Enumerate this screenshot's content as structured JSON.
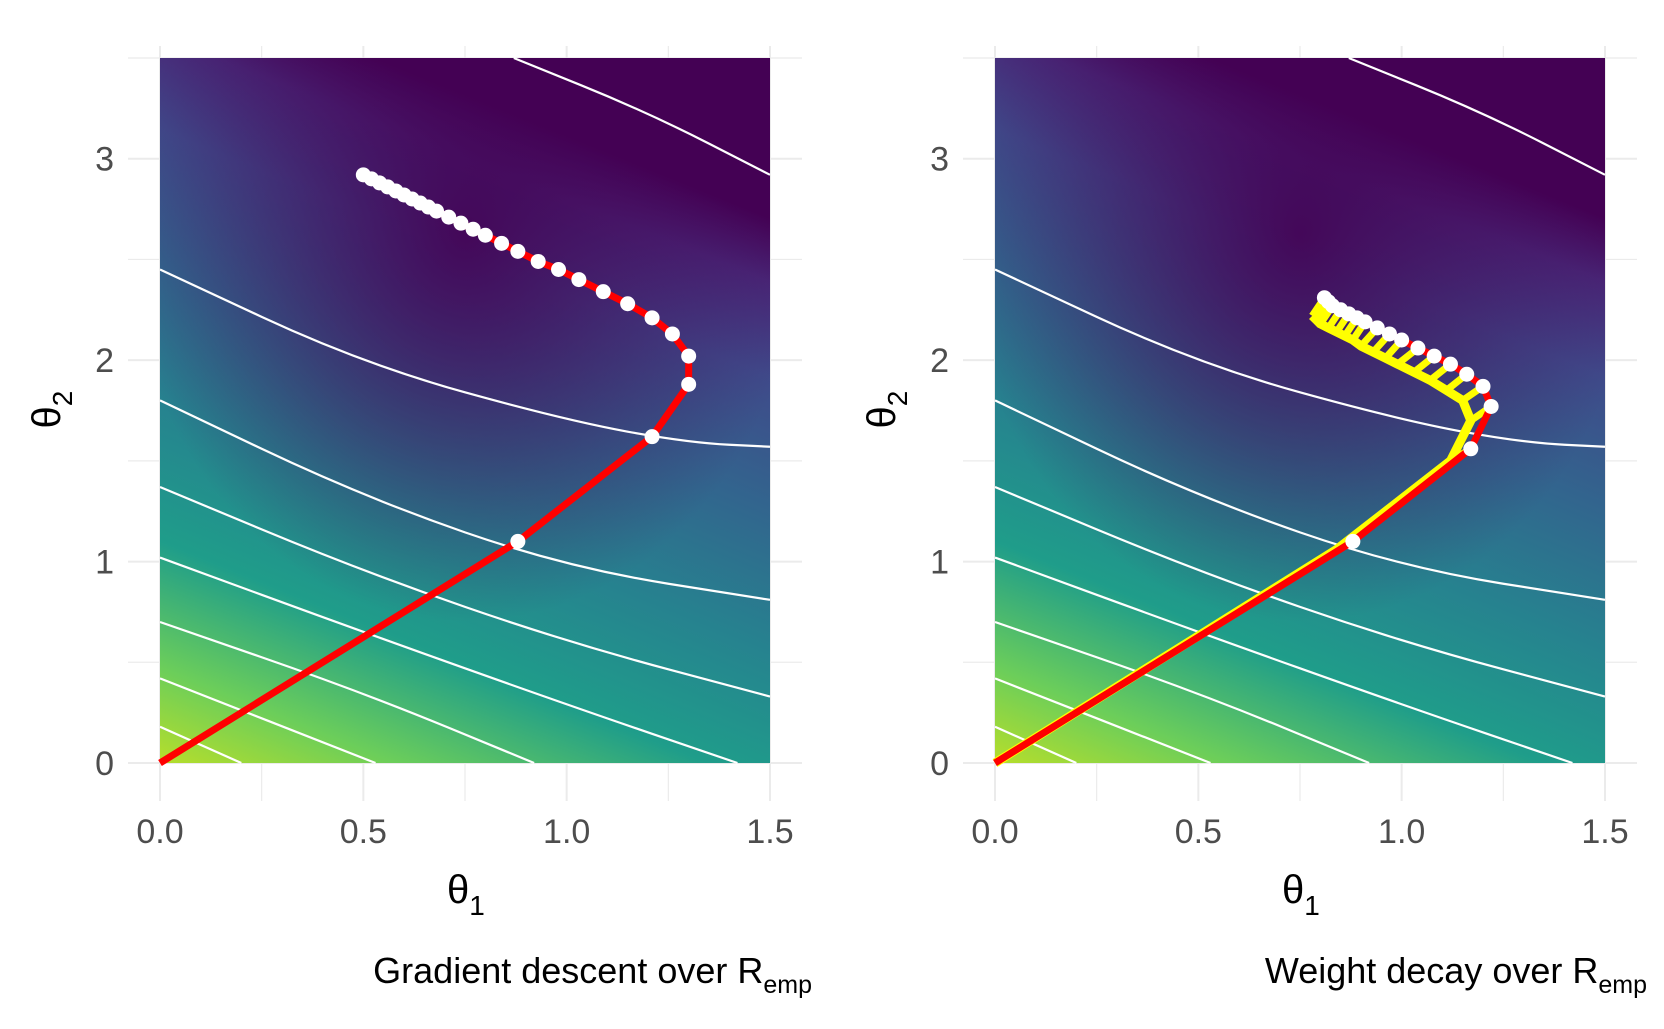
{
  "colors": {
    "path": "#ff0000",
    "weight_decay_path": "#ffff00",
    "contour": "#ffffff",
    "grid": "#ebebeb",
    "palette": [
      "#440154",
      "#482777",
      "#3f4a8a",
      "#31678e",
      "#26838f",
      "#1f9d8a",
      "#6cce5a",
      "#b6de2b"
    ]
  },
  "chart_data": [
    {
      "type": "contour",
      "caption": "Gradient descent over R",
      "caption_subscript": "emp",
      "xlabel": "θ",
      "xlabel_subscript": "1",
      "ylabel": "θ",
      "ylabel_subscript": "2",
      "xlim": [
        0,
        1.5
      ],
      "ylim": [
        0,
        3.5
      ],
      "xticks": [
        0.0,
        0.5,
        1.0,
        1.5
      ],
      "xtick_labels": [
        "0.0",
        "0.5",
        "1.0",
        "1.5"
      ],
      "yticks": [
        0,
        1,
        2,
        3
      ],
      "ytick_labels": [
        "0",
        "1",
        "2",
        "3"
      ],
      "grid": true,
      "contour_lines": [
        [
          [
            0.0,
            0.18
          ],
          [
            0.2,
            0.0
          ]
        ],
        [
          [
            0.0,
            0.42
          ],
          [
            0.53,
            0.0
          ]
        ],
        [
          [
            0.0,
            0.7
          ],
          [
            0.5,
            0.35
          ],
          [
            0.92,
            0.0
          ]
        ],
        [
          [
            0.0,
            1.02
          ],
          [
            0.5,
            0.65
          ],
          [
            1.0,
            0.29
          ],
          [
            1.42,
            0.0
          ]
        ],
        [
          [
            0.0,
            1.37
          ],
          [
            0.5,
            0.95
          ],
          [
            1.0,
            0.6
          ],
          [
            1.5,
            0.33
          ]
        ],
        [
          [
            0.0,
            1.8
          ],
          [
            0.5,
            1.32
          ],
          [
            1.0,
            0.97
          ],
          [
            1.5,
            0.81
          ]
        ],
        [
          [
            0.0,
            2.45
          ],
          [
            0.5,
            1.98
          ],
          [
            1.0,
            1.7
          ],
          [
            1.3,
            1.59
          ],
          [
            1.5,
            1.57
          ]
        ],
        [
          [
            0.87,
            3.5
          ],
          [
            1.2,
            3.23
          ],
          [
            1.5,
            2.92
          ]
        ]
      ],
      "path": [
        [
          0.0,
          0.0
        ],
        [
          0.88,
          1.1
        ],
        [
          1.21,
          1.62
        ],
        [
          1.3,
          1.88
        ],
        [
          1.3,
          2.02
        ],
        [
          1.26,
          2.13
        ],
        [
          1.21,
          2.21
        ],
        [
          1.15,
          2.28
        ],
        [
          1.09,
          2.34
        ],
        [
          1.03,
          2.4
        ],
        [
          0.98,
          2.45
        ],
        [
          0.93,
          2.49
        ],
        [
          0.88,
          2.54
        ],
        [
          0.84,
          2.58
        ],
        [
          0.8,
          2.62
        ],
        [
          0.77,
          2.65
        ],
        [
          0.74,
          2.68
        ],
        [
          0.71,
          2.71
        ],
        [
          0.68,
          2.74
        ],
        [
          0.66,
          2.76
        ],
        [
          0.64,
          2.78
        ],
        [
          0.62,
          2.8
        ],
        [
          0.6,
          2.82
        ],
        [
          0.58,
          2.84
        ],
        [
          0.56,
          2.86
        ],
        [
          0.54,
          2.88
        ],
        [
          0.52,
          2.9
        ],
        [
          0.5,
          2.92
        ]
      ]
    },
    {
      "type": "contour",
      "caption": "Weight decay over R",
      "caption_subscript": "emp",
      "xlabel": "θ",
      "xlabel_subscript": "1",
      "ylabel": "θ",
      "ylabel_subscript": "2",
      "xlim": [
        0,
        1.5
      ],
      "ylim": [
        0,
        3.5
      ],
      "xticks": [
        0.0,
        0.5,
        1.0,
        1.5
      ],
      "xtick_labels": [
        "0.0",
        "0.5",
        "1.0",
        "1.5"
      ],
      "yticks": [
        0,
        1,
        2,
        3
      ],
      "ytick_labels": [
        "0",
        "1",
        "2",
        "3"
      ],
      "grid": true,
      "contour_lines": [
        [
          [
            0.0,
            0.18
          ],
          [
            0.2,
            0.0
          ]
        ],
        [
          [
            0.0,
            0.42
          ],
          [
            0.53,
            0.0
          ]
        ],
        [
          [
            0.0,
            0.7
          ],
          [
            0.5,
            0.35
          ],
          [
            0.92,
            0.0
          ]
        ],
        [
          [
            0.0,
            1.02
          ],
          [
            0.5,
            0.65
          ],
          [
            1.0,
            0.29
          ],
          [
            1.42,
            0.0
          ]
        ],
        [
          [
            0.0,
            1.37
          ],
          [
            0.5,
            0.95
          ],
          [
            1.0,
            0.6
          ],
          [
            1.5,
            0.33
          ]
        ],
        [
          [
            0.0,
            1.8
          ],
          [
            0.5,
            1.32
          ],
          [
            1.0,
            0.97
          ],
          [
            1.5,
            0.81
          ]
        ],
        [
          [
            0.0,
            2.45
          ],
          [
            0.5,
            1.98
          ],
          [
            1.0,
            1.7
          ],
          [
            1.3,
            1.59
          ],
          [
            1.5,
            1.57
          ]
        ],
        [
          [
            0.87,
            3.5
          ],
          [
            1.2,
            3.23
          ],
          [
            1.5,
            2.92
          ]
        ]
      ],
      "path": [
        [
          0.0,
          0.0
        ],
        [
          0.88,
          1.1
        ],
        [
          1.17,
          1.56
        ],
        [
          1.22,
          1.77
        ],
        [
          1.2,
          1.87
        ],
        [
          1.16,
          1.93
        ],
        [
          1.12,
          1.98
        ],
        [
          1.08,
          2.02
        ],
        [
          1.04,
          2.06
        ],
        [
          1.0,
          2.1
        ],
        [
          0.97,
          2.13
        ],
        [
          0.94,
          2.16
        ],
        [
          0.91,
          2.19
        ],
        [
          0.89,
          2.21
        ],
        [
          0.87,
          2.23
        ],
        [
          0.85,
          2.25
        ],
        [
          0.83,
          2.27
        ],
        [
          0.82,
          2.29
        ],
        [
          0.81,
          2.31
        ]
      ],
      "decay_path": [
        [
          0.0,
          0.0
        ],
        [
          0.84,
          1.06
        ],
        [
          1.12,
          1.5
        ],
        [
          1.17,
          1.7
        ],
        [
          1.15,
          1.8
        ],
        [
          1.11,
          1.85
        ],
        [
          1.07,
          1.9
        ],
        [
          1.03,
          1.94
        ],
        [
          0.99,
          1.98
        ],
        [
          0.96,
          2.01
        ],
        [
          0.93,
          2.04
        ],
        [
          0.9,
          2.07
        ],
        [
          0.88,
          2.1
        ],
        [
          0.86,
          2.12
        ],
        [
          0.84,
          2.14
        ],
        [
          0.82,
          2.16
        ],
        [
          0.8,
          2.18
        ],
        [
          0.79,
          2.2
        ],
        [
          0.78,
          2.22
        ]
      ]
    }
  ]
}
